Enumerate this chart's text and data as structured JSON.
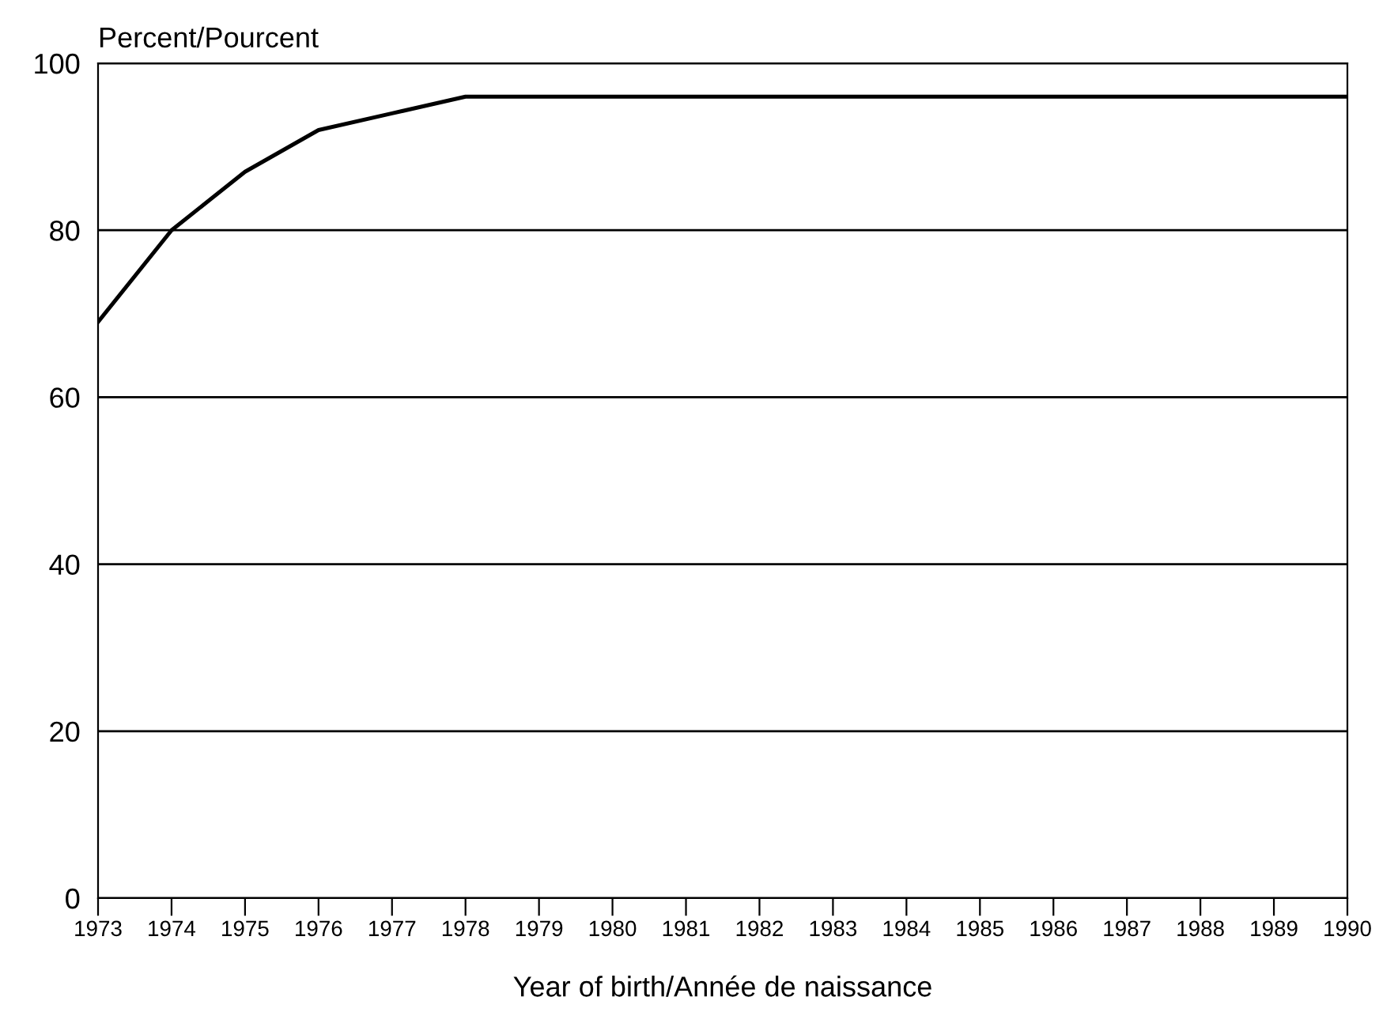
{
  "chart_data": {
    "type": "line",
    "ylabel": "Percent/Pourcent",
    "xlabel": "Year of birth/Année de naissance",
    "x": [
      1973,
      1974,
      1975,
      1976,
      1977,
      1978,
      1979,
      1980,
      1981,
      1982,
      1983,
      1984,
      1985,
      1986,
      1987,
      1988,
      1989,
      1990
    ],
    "series": [
      {
        "color": "#000000",
        "values": [
          69,
          80,
          87,
          92,
          94,
          96,
          96,
          96,
          96,
          96,
          96,
          96,
          96,
          96,
          96,
          96,
          96,
          96
        ]
      }
    ],
    "xlim": [
      1973,
      1990
    ],
    "xticks": [
      1973,
      1974,
      1975,
      1976,
      1977,
      1978,
      1979,
      1980,
      1981,
      1982,
      1983,
      1984,
      1985,
      1986,
      1987,
      1988,
      1989,
      1990
    ],
    "ylim": [
      0,
      100
    ],
    "yticks": [
      0,
      20,
      40,
      60,
      80,
      100
    ],
    "grid": "y",
    "marker": "none",
    "line_style": "solid"
  }
}
